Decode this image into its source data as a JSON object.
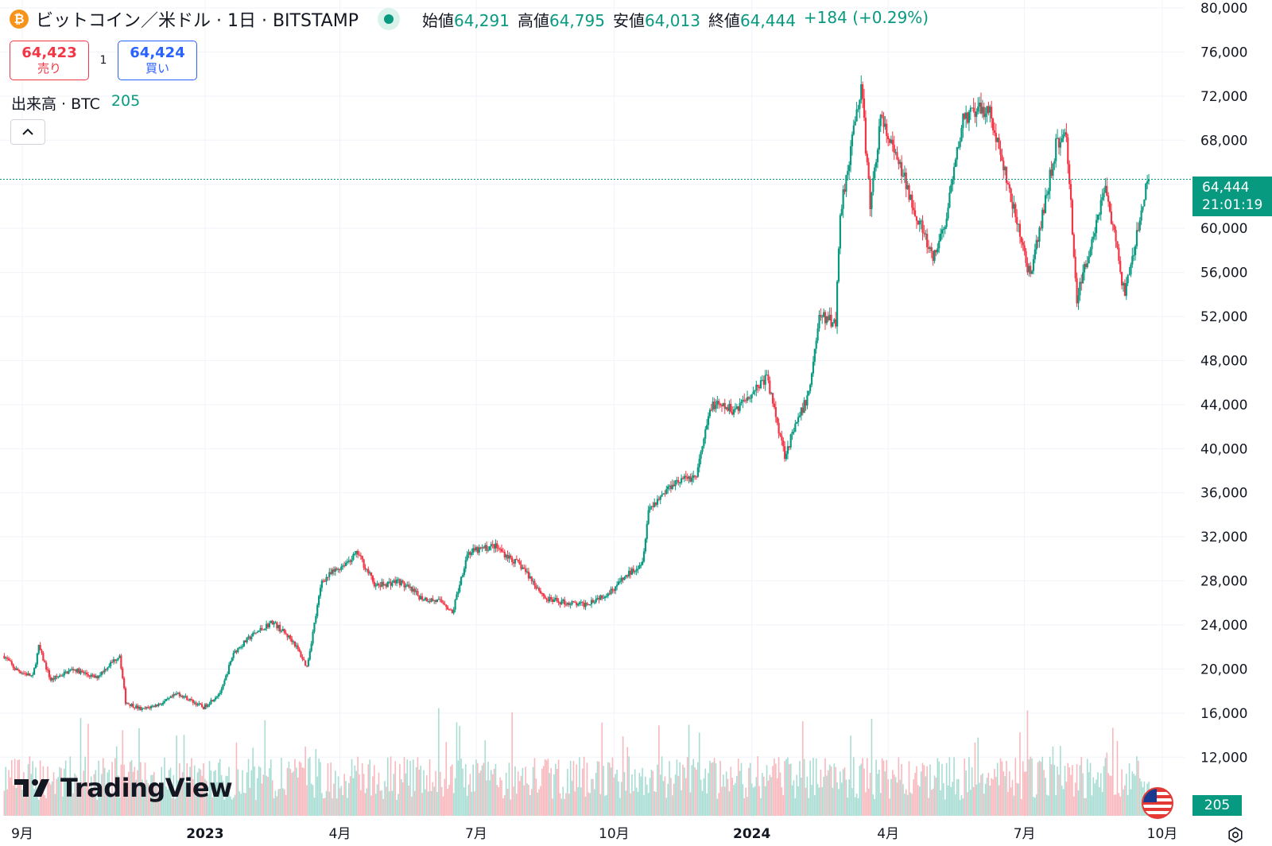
{
  "header": {
    "coin_icon": "bitcoin-icon",
    "coin_symbol": "₿",
    "title": "ビットコイン／米ドル · 1日 · BITSTAMP",
    "ohlc": {
      "open_label": "始値",
      "open": "64,291",
      "high_label": "高値",
      "high": "64,795",
      "low_label": "安値",
      "low": "64,013",
      "close_label": "終値",
      "close": "64,444",
      "change": "+184 (+0.29%)"
    }
  },
  "trade": {
    "sell_price": "64,423",
    "sell_label": "売り",
    "spread": "1",
    "buy_price": "64,424",
    "buy_label": "買い"
  },
  "volume_legend": {
    "label": "出来高 · BTC",
    "value": "205"
  },
  "branding": {
    "logo_text": "TradingView"
  },
  "price_tag": {
    "price": "64,444",
    "countdown": "21:01:19"
  },
  "volume_tag": "205",
  "colors": {
    "up": "#089981",
    "down": "#f23645",
    "up_volume": "#a8ddd4",
    "down_volume": "#f9b8bd",
    "grid": "#f0f3fa"
  },
  "chart_data": {
    "type": "candlestick",
    "title": "ビットコイン／米ドル · 1日 · BITSTAMP",
    "interval": "1D",
    "x_range": [
      "2022-08-20",
      "2024-09-22"
    ],
    "ylim": [
      10000,
      80000
    ],
    "y_ticks": [
      "80,000",
      "76,000",
      "72,000",
      "68,000",
      "64,000",
      "60,000",
      "56,000",
      "52,000",
      "48,000",
      "44,000",
      "40,000",
      "36,000",
      "32,000",
      "28,000",
      "24,000",
      "20,000",
      "16,000",
      "12,000"
    ],
    "x_ticks": [
      {
        "label": "9月",
        "date": "2022-09-01"
      },
      {
        "label": "2023",
        "date": "2023-01-01"
      },
      {
        "label": "4月",
        "date": "2023-04-01"
      },
      {
        "label": "7月",
        "date": "2023-07-01"
      },
      {
        "label": "10月",
        "date": "2023-10-01"
      },
      {
        "label": "2024",
        "date": "2024-01-01"
      },
      {
        "label": "4月",
        "date": "2024-04-01"
      },
      {
        "label": "7月",
        "date": "2024-07-01"
      },
      {
        "label": "10月",
        "date": "2024-10-01"
      }
    ],
    "last_price": 64444,
    "close_path": [
      [
        "2022-08-20",
        21200
      ],
      [
        "2022-08-27",
        20000
      ],
      [
        "2022-09-08",
        19300
      ],
      [
        "2022-09-12",
        22000
      ],
      [
        "2022-09-20",
        19000
      ],
      [
        "2022-10-05",
        20000
      ],
      [
        "2022-10-20",
        19200
      ],
      [
        "2022-11-05",
        21300
      ],
      [
        "2022-11-09",
        17000
      ],
      [
        "2022-11-20",
        16300
      ],
      [
        "2022-12-05",
        17000
      ],
      [
        "2022-12-14",
        17800
      ],
      [
        "2022-12-31",
        16500
      ],
      [
        "2023-01-12",
        18000
      ],
      [
        "2023-01-20",
        21500
      ],
      [
        "2023-02-01",
        23000
      ],
      [
        "2023-02-15",
        24300
      ],
      [
        "2023-03-01",
        22500
      ],
      [
        "2023-03-10",
        20200
      ],
      [
        "2023-03-20",
        28000
      ],
      [
        "2023-04-13",
        30500
      ],
      [
        "2023-04-25",
        27500
      ],
      [
        "2023-05-10",
        28000
      ],
      [
        "2023-05-25",
        26500
      ],
      [
        "2023-06-10",
        26000
      ],
      [
        "2023-06-15",
        25000
      ],
      [
        "2023-06-25",
        30500
      ],
      [
        "2023-07-13",
        31200
      ],
      [
        "2023-08-01",
        29200
      ],
      [
        "2023-08-17",
        26300
      ],
      [
        "2023-09-10",
        25800
      ],
      [
        "2023-09-28",
        27000
      ],
      [
        "2023-10-20",
        29800
      ],
      [
        "2023-10-24",
        34500
      ],
      [
        "2023-11-10",
        37000
      ],
      [
        "2023-11-25",
        37500
      ],
      [
        "2023-12-05",
        44000
      ],
      [
        "2023-12-20",
        43500
      ],
      [
        "2024-01-11",
        46500
      ],
      [
        "2024-01-23",
        39500
      ],
      [
        "2024-02-08",
        45000
      ],
      [
        "2024-02-15",
        52000
      ],
      [
        "2024-02-26",
        51500
      ],
      [
        "2024-02-29",
        61500
      ],
      [
        "2024-03-14",
        73000
      ],
      [
        "2024-03-20",
        62000
      ],
      [
        "2024-03-27",
        70000
      ],
      [
        "2024-04-13",
        64000
      ],
      [
        "2024-05-01",
        57000
      ],
      [
        "2024-05-10",
        61000
      ],
      [
        "2024-05-21",
        70000
      ],
      [
        "2024-06-07",
        71000
      ],
      [
        "2024-06-25",
        61000
      ],
      [
        "2024-07-05",
        55500
      ],
      [
        "2024-07-22",
        67500
      ],
      [
        "2024-07-29",
        68500
      ],
      [
        "2024-08-05",
        53500
      ],
      [
        "2024-08-24",
        64000
      ],
      [
        "2024-09-06",
        53800
      ],
      [
        "2024-09-20",
        63500
      ],
      [
        "2024-09-22",
        64444
      ]
    ],
    "volume_axis_tag": 205
  }
}
